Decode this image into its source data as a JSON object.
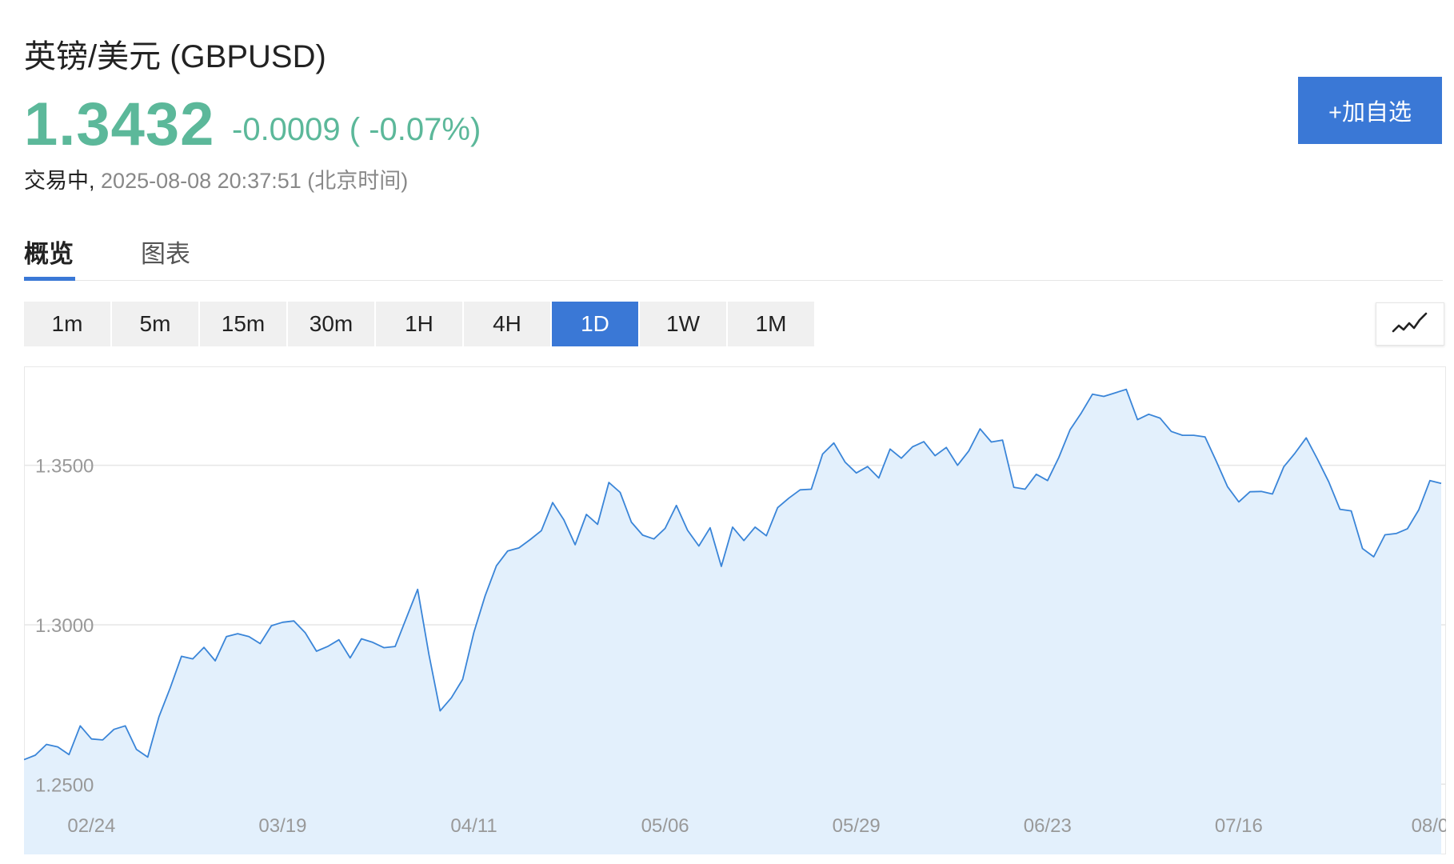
{
  "header": {
    "title": "英镑/美元 (GBPUSD)",
    "price": "1.3432",
    "change": "-0.0009 ( -0.07%)",
    "status": "交易中,",
    "timestamp": "2025-08-08 20:37:51 (北京时间)",
    "add_button": "+加自选"
  },
  "tabs": [
    {
      "label": "概览",
      "active": true
    },
    {
      "label": "图表",
      "active": false
    }
  ],
  "periods": [
    {
      "label": "1m",
      "active": false
    },
    {
      "label": "5m",
      "active": false
    },
    {
      "label": "15m",
      "active": false
    },
    {
      "label": "30m",
      "active": false
    },
    {
      "label": "1H",
      "active": false
    },
    {
      "label": "4H",
      "active": false
    },
    {
      "label": "1D",
      "active": true
    },
    {
      "label": "1W",
      "active": false
    },
    {
      "label": "1M",
      "active": false
    }
  ],
  "chart_type_icon": "line-chart-icon",
  "colors": {
    "up_green": "#5cb89a",
    "accent_blue": "#3a78d6",
    "line": "#3a85d8",
    "area": "#e3f0fc"
  },
  "chart_data": {
    "type": "area",
    "title": "",
    "xlabel": "",
    "ylabel": "",
    "ylim": [
      1.228,
      1.381
    ],
    "yticks": [
      "1.3500",
      "1.3000",
      "1.2500"
    ],
    "ytick_values": [
      1.35,
      1.3,
      1.25
    ],
    "xticks": [
      "02/24",
      "03/19",
      "04/11",
      "05/06",
      "05/29",
      "06/23",
      "07/16",
      "08/0"
    ],
    "xtick_index": [
      6,
      23,
      40,
      57,
      74,
      91,
      108,
      125
    ],
    "grid": true,
    "legend": "none",
    "series": [
      {
        "values": [
          1.2577,
          1.2591,
          1.2625,
          1.2617,
          1.2593,
          1.2683,
          1.2642,
          1.2639,
          1.2672,
          1.2683,
          1.2609,
          1.2585,
          1.2712,
          1.2802,
          1.2901,
          1.2893,
          1.2929,
          1.2887,
          1.2963,
          1.2972,
          1.2963,
          1.2941,
          1.2997,
          1.3008,
          1.3012,
          1.2975,
          1.2917,
          1.2932,
          1.2953,
          1.2896,
          1.2956,
          1.2945,
          1.2928,
          1.2932,
          1.3022,
          1.3111,
          1.2907,
          1.273,
          1.2771,
          1.2829,
          1.2976,
          1.3091,
          1.3185,
          1.3231,
          1.3241,
          1.3267,
          1.3295,
          1.3383,
          1.3329,
          1.3251,
          1.3346,
          1.3315,
          1.3446,
          1.3415,
          1.3322,
          1.3281,
          1.3269,
          1.3302,
          1.3374,
          1.3296,
          1.3247,
          1.3304,
          1.3183,
          1.3306,
          1.3264,
          1.3306,
          1.3279,
          1.3367,
          1.3397,
          1.3423,
          1.3425,
          1.3535,
          1.357,
          1.351,
          1.3476,
          1.3496,
          1.346,
          1.3551,
          1.3522,
          1.3558,
          1.3574,
          1.353,
          1.3556,
          1.35,
          1.3545,
          1.3614,
          1.3573,
          1.3579,
          1.3431,
          1.3425,
          1.3472,
          1.3452,
          1.3524,
          1.3611,
          1.3664,
          1.3723,
          1.3716,
          1.3727,
          1.3738,
          1.3643,
          1.366,
          1.3648,
          1.3606,
          1.3594,
          1.3594,
          1.3589,
          1.3513,
          1.3433,
          1.3385,
          1.3417,
          1.3418,
          1.341,
          1.3495,
          1.3538,
          1.3586,
          1.3519,
          1.3448,
          1.3362,
          1.3357,
          1.3239,
          1.3213,
          1.3282,
          1.3286,
          1.3301,
          1.336,
          1.3452,
          1.3443
        ]
      }
    ]
  }
}
